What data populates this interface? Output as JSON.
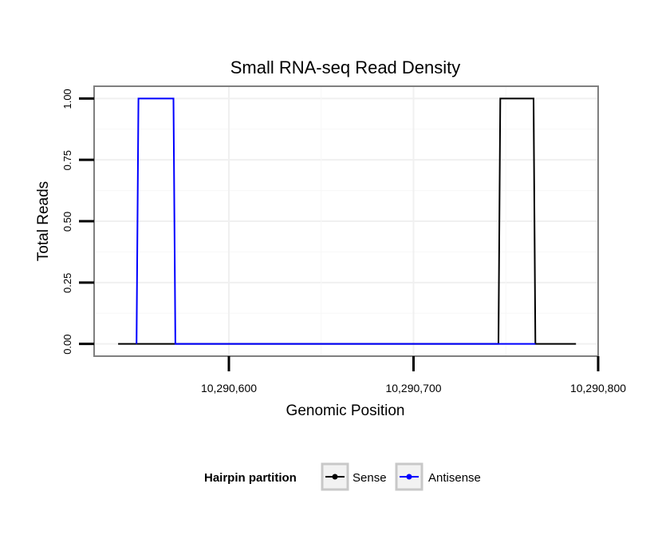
{
  "chart_data": {
    "type": "line",
    "title": "Small RNA-seq Read Density",
    "xlabel": "Genomic Position",
    "ylabel": "Total Reads",
    "xlim": [
      10290527,
      10290800
    ],
    "ylim": [
      -0.05,
      1.05
    ],
    "x_ticks": [
      10290600,
      10290700,
      10290800
    ],
    "x_tick_labels": [
      "10,290,600",
      "10,290,700",
      "10,290,800"
    ],
    "y_ticks": [
      0,
      0.25,
      0.5,
      0.75,
      1
    ],
    "y_tick_labels": [
      "0.00",
      "0.25",
      "0.50",
      "0.75",
      "1.00"
    ],
    "grid": true,
    "legend": {
      "title": "Hairpin partition",
      "position": "bottom"
    },
    "series": [
      {
        "name": "Sense",
        "color": "#000000",
        "x": [
          10290540,
          10290746,
          10290747,
          10290765,
          10290766,
          10290788
        ],
        "y": [
          0,
          0,
          1,
          1,
          0,
          0
        ]
      },
      {
        "name": "Antisense",
        "color": "#0000ff",
        "x": [
          10290550,
          10290551,
          10290570,
          10290571,
          10290746,
          10290747,
          10290765,
          10290766
        ],
        "y": [
          0,
          1,
          1,
          0,
          0,
          0,
          0,
          0
        ]
      }
    ]
  }
}
